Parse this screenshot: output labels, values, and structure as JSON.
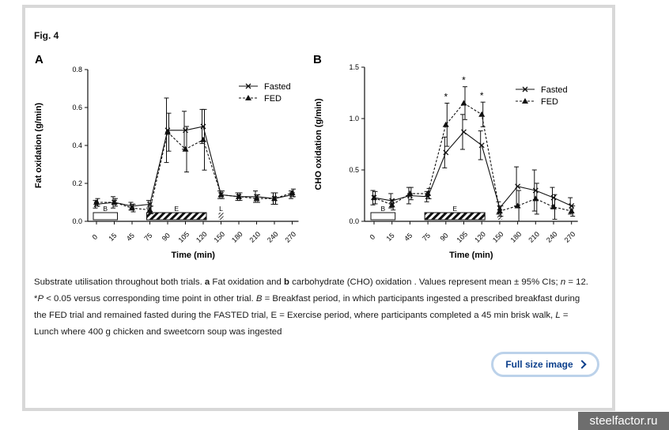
{
  "figure": {
    "label": "Fig. 4",
    "caption": {
      "part1": "Substrate utilisation throughout both trials. ",
      "a": "a",
      "part2": " Fat oxidation and ",
      "b": "b",
      "part3": " carbohydrate (CHO) oxidation . Values represent mean ± 95% CIs; ",
      "n_italic": "n",
      "part4": " = 12. *",
      "p_italic": "P",
      "part5": " < 0.05 versus corresponding time point in other trial. ",
      "b_italic": "B",
      "part6": " = Breakfast period, in which participants ingested a prescribed breakfast during the FED trial and remained fasted during the FASTED trial, E = Exercise period, where participants completed a 45 min brisk walk, ",
      "l_italic": "L",
      "part7": " = Lunch where 400 g chicken and sweetcorn soup was ingested"
    },
    "full_size_label": "Full size image",
    "chevron_icon": "chevron-right-icon"
  },
  "watermark": "steelfactor.ru",
  "colors": {
    "card_border": "#d8d8d8",
    "button_border": "#bcd2ea",
    "button_text": "#0b3f8c",
    "watermark_bg": "#6e6e6e"
  },
  "chart_data": [
    {
      "panel": "A",
      "type": "line",
      "ylabel": "Fat oxidation (g/min)",
      "xlabel": "Time (min)",
      "ylim": [
        0,
        0.8
      ],
      "yticks": [
        "0.0",
        "0.2",
        "0.4",
        "0.6",
        "0.8"
      ],
      "x": [
        "0",
        "15",
        "45",
        "75",
        "90",
        "105",
        "120",
        "150",
        "180",
        "210",
        "240",
        "270"
      ],
      "series": [
        {
          "name": "Fasted",
          "marker": "x",
          "values": [
            0.09,
            0.1,
            0.08,
            0.09,
            0.48,
            0.48,
            0.5,
            0.14,
            0.13,
            0.13,
            0.12,
            0.14
          ],
          "ci": [
            0.02,
            0.03,
            0.02,
            0.02,
            0.17,
            0.1,
            0.09,
            0.02,
            0.02,
            0.03,
            0.03,
            0.02
          ]
        },
        {
          "name": "FED",
          "marker": "triangle",
          "values": [
            0.1,
            0.1,
            0.07,
            0.06,
            0.47,
            0.38,
            0.43,
            0.14,
            0.13,
            0.12,
            0.12,
            0.15
          ],
          "ci": [
            0.02,
            0.02,
            0.02,
            0.02,
            0.1,
            0.12,
            0.16,
            0.02,
            0.02,
            0.02,
            0.03,
            0.02
          ]
        }
      ],
      "periods": [
        {
          "label": "B",
          "from": "0",
          "to": "15",
          "fill": "open"
        },
        {
          "label": "E",
          "from": "75",
          "to": "120",
          "fill": "hatched"
        },
        {
          "label": "L",
          "from": "150",
          "to": "150",
          "fill": "hatched"
        }
      ],
      "significance": [],
      "legend": "top-right"
    },
    {
      "panel": "B",
      "type": "line",
      "ylabel": "CHO oxidation (g/min)",
      "xlabel": "Time (min)",
      "ylim": [
        0,
        1.5
      ],
      "yticks": [
        "0.0",
        "0.5",
        "1.0",
        "1.5"
      ],
      "x": [
        "0",
        "15",
        "45",
        "75",
        "90",
        "105",
        "120",
        "150",
        "180",
        "210",
        "240",
        "270"
      ],
      "series": [
        {
          "name": "Fasted",
          "marker": "x",
          "values": [
            0.23,
            0.2,
            0.25,
            0.24,
            0.67,
            0.87,
            0.74,
            0.13,
            0.34,
            0.3,
            0.23,
            0.15
          ],
          "ci": [
            0.07,
            0.07,
            0.08,
            0.05,
            0.15,
            0.17,
            0.14,
            0.06,
            0.19,
            0.2,
            0.1,
            0.08
          ]
        },
        {
          "name": "FED",
          "marker": "triangle",
          "values": [
            0.23,
            0.16,
            0.27,
            0.27,
            0.94,
            1.15,
            1.04,
            0.1,
            0.15,
            0.22,
            0.14,
            0.1
          ],
          "ci": [
            0.06,
            0.05,
            0.06,
            0.05,
            0.21,
            0.16,
            0.12,
            0.05,
            0.15,
            0.15,
            0.12,
            0.05
          ]
        }
      ],
      "periods": [
        {
          "label": "B",
          "from": "0",
          "to": "15",
          "fill": "open"
        },
        {
          "label": "E",
          "from": "75",
          "to": "120",
          "fill": "hatched"
        },
        {
          "label": "",
          "from": "150",
          "to": "150",
          "fill": "hatched"
        }
      ],
      "significance": [
        "90",
        "105",
        "120"
      ],
      "legend": "top-right"
    }
  ]
}
